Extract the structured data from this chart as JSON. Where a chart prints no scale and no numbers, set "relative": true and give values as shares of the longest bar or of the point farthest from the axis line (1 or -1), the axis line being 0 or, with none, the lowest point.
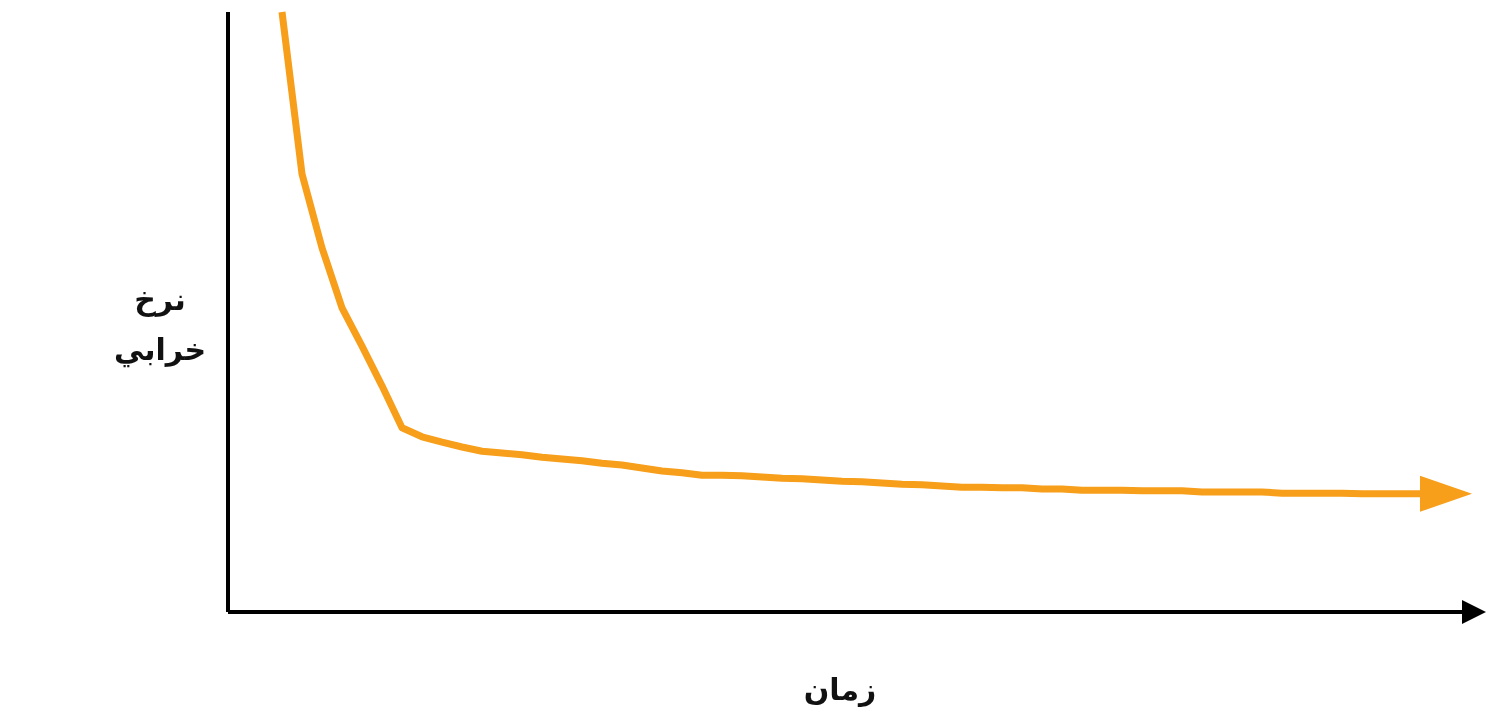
{
  "chart_data": {
    "type": "line",
    "xlabel": "زمان",
    "ylabel": "نرخ خرابي",
    "relative": true,
    "categories": [
      null,
      null,
      null,
      null,
      null,
      null,
      null,
      null,
      null,
      null,
      null,
      null,
      null,
      null,
      null,
      null,
      null,
      null,
      null,
      null,
      null,
      null,
      null,
      null,
      null,
      null,
      null,
      null,
      null,
      null,
      null,
      null,
      null,
      null,
      null,
      null,
      null,
      null,
      null,
      null,
      null,
      null,
      null,
      null,
      null,
      null,
      null,
      null,
      null,
      null,
      null,
      null,
      null,
      null,
      null,
      null,
      null,
      null
    ],
    "series": [
      {
        "color": "#f79e1b",
        "values": [
          1.0,
          0.73,
          0.607,
          0.507,
          0.443,
          0.377,
          0.307,
          0.292,
          0.283,
          0.275,
          0.268,
          0.265,
          0.262,
          0.258,
          0.255,
          0.252,
          0.248,
          0.245,
          0.24,
          0.235,
          0.232,
          0.228,
          0.228,
          0.227,
          0.225,
          0.223,
          0.222,
          0.22,
          0.218,
          0.217,
          0.215,
          0.213,
          0.212,
          0.21,
          0.208,
          0.208,
          0.207,
          0.207,
          0.205,
          0.205,
          0.203,
          0.203,
          0.203,
          0.202,
          0.202,
          0.202,
          0.2,
          0.2,
          0.2,
          0.2,
          0.198,
          0.198,
          0.198,
          0.198,
          0.197,
          0.197,
          0.197,
          0.197
        ]
      }
    ]
  }
}
